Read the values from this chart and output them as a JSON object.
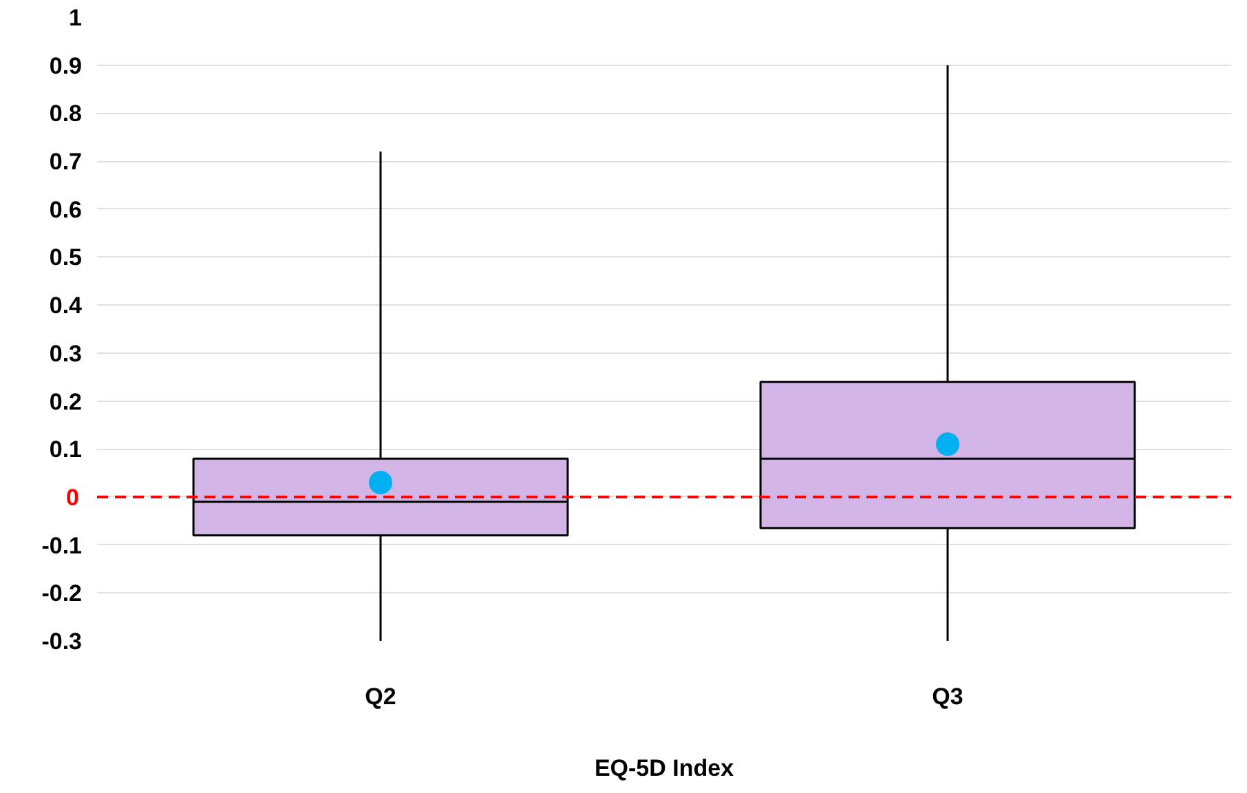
{
  "chart_data": {
    "type": "box",
    "xlabel": "EQ-5D Index",
    "categories": [
      "Q2",
      "Q3"
    ],
    "color": "#d2b4e6",
    "boxes": [
      {
        "low": -0.3,
        "q1": -0.08,
        "median": -0.01,
        "q3": 0.08,
        "high": 0.72
      },
      {
        "low": -0.3,
        "q1": -0.065,
        "median": 0.08,
        "q3": 0.24,
        "high": 0.9
      }
    ],
    "series": [
      {
        "type": "scatter",
        "x": [
          "Q2",
          "Q3"
        ],
        "values": [
          0.03,
          0.11
        ],
        "color": "#00b0f0",
        "marker": "circle"
      }
    ],
    "ylim": [
      -0.3,
      1
    ],
    "yticks": [
      -0.3,
      -0.2,
      -0.1,
      {
        "value": 0,
        "label": null
      },
      0.1,
      0.2,
      0.3,
      0.4,
      0.5,
      0.6,
      0.7,
      0.8,
      0.9,
      1
    ],
    "ref_lines": [
      {
        "axis": "y",
        "value": 0,
        "label": "0",
        "color": "#ff0000",
        "line_style": "dashed"
      }
    ],
    "grid": "y"
  }
}
